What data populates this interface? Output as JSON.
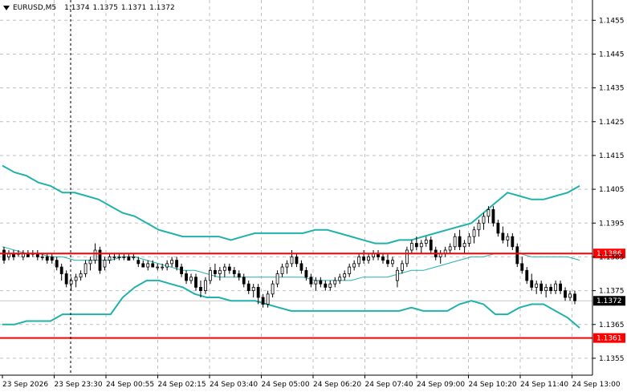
{
  "header": {
    "symbol": "EURUSD,M5",
    "ohlc": "1.1374 1.1375 1.1371 1.1372"
  },
  "price_axis": {
    "labels": [
      "1.1455",
      "1.1445",
      "1.1435",
      "1.1425",
      "1.1415",
      "1.1405",
      "1.1395",
      "1.1385",
      "1.1375",
      "1.1365",
      "1.1355"
    ],
    "current_price": "1.1372"
  },
  "time_axis": {
    "labels": [
      "23 Sep 2026",
      "23 Sep 23:30",
      "24 Sep 00:55",
      "24 Sep 02:15",
      "24 Sep 03:40",
      "24 Sep 05:00",
      "24 Sep 06:20",
      "24 Sep 07:40",
      "24 Sep 09:00",
      "24 Sep 10:20",
      "24 Sep 11:40",
      "24 Sep 13:00"
    ]
  },
  "horizontal_lines": [
    {
      "label": "1.1386",
      "price": 1.1386,
      "color": "#ff0000"
    },
    {
      "label": "1.1361",
      "price": 1.1361,
      "color": "#ff0000"
    }
  ],
  "colors": {
    "bands": "#20b2aa",
    "grid": "#c0c0c0",
    "candle": "#000000",
    "level_lines": "#ff0000"
  },
  "chart_data": {
    "type": "candlestick",
    "y_range": [
      1.135,
      1.1461
    ],
    "indicator": "bollinger-bands",
    "upper_band": [
      1.1412,
      1.141,
      1.1409,
      1.1407,
      1.1406,
      1.1404,
      1.1404,
      1.1403,
      1.1402,
      1.14,
      1.1398,
      1.1397,
      1.1395,
      1.1393,
      1.1392,
      1.1391,
      1.1391,
      1.1391,
      1.1391,
      1.139,
      1.1391,
      1.1392,
      1.1392,
      1.1392,
      1.1392,
      1.1392,
      1.1393,
      1.1393,
      1.1392,
      1.1391,
      1.139,
      1.1389,
      1.1389,
      1.139,
      1.139,
      1.1391,
      1.1392,
      1.1393,
      1.1394,
      1.1395,
      1.1398,
      1.1401,
      1.1404,
      1.1403,
      1.1402,
      1.1402,
      1.1403,
      1.1404,
      1.1406
    ],
    "middle_band": [
      1.1388,
      1.1387,
      1.1386,
      1.1386,
      1.1385,
      1.1385,
      1.1384,
      1.1384,
      1.1384,
      1.1384,
      1.1385,
      1.1385,
      1.1384,
      1.1383,
      1.1382,
      1.1381,
      1.1381,
      1.138,
      1.1379,
      1.1379,
      1.1379,
      1.1379,
      1.1379,
      1.1379,
      1.1379,
      1.1379,
      1.1378,
      1.1378,
      1.1378,
      1.1378,
      1.1379,
      1.1379,
      1.1379,
      1.138,
      1.1381,
      1.1381,
      1.1382,
      1.1383,
      1.1384,
      1.1385,
      1.1385,
      1.1386,
      1.1386,
      1.1386,
      1.1385,
      1.1385,
      1.1385,
      1.1385,
      1.1384
    ],
    "lower_band": [
      1.1365,
      1.1365,
      1.1366,
      1.1366,
      1.1366,
      1.1368,
      1.1368,
      1.1368,
      1.1368,
      1.1368,
      1.1373,
      1.1376,
      1.1378,
      1.1378,
      1.1377,
      1.1376,
      1.1374,
      1.1373,
      1.1373,
      1.1372,
      1.1372,
      1.1372,
      1.1371,
      1.137,
      1.1369,
      1.1369,
      1.1369,
      1.1369,
      1.1369,
      1.1369,
      1.1369,
      1.1369,
      1.1369,
      1.1369,
      1.137,
      1.1369,
      1.1369,
      1.1369,
      1.1371,
      1.1372,
      1.1371,
      1.1368,
      1.1368,
      1.137,
      1.1371,
      1.1371,
      1.1369,
      1.1367,
      1.1364
    ],
    "candles": [
      [
        1.1387,
        1.1388,
        1.1383,
        1.1384
      ],
      [
        1.1385,
        1.1387,
        1.1384,
        1.1386
      ],
      [
        1.1386,
        1.1387,
        1.1384,
        1.1385
      ],
      [
        1.1386,
        1.1387,
        1.1385,
        1.1386
      ],
      [
        1.1385,
        1.1387,
        1.1384,
        1.1386
      ],
      [
        1.1386,
        1.1387,
        1.1385,
        1.1385
      ],
      [
        1.1386,
        1.1387,
        1.1385,
        1.1386
      ],
      [
        1.1386,
        1.1387,
        1.1384,
        1.1385
      ],
      [
        1.1385,
        1.1386,
        1.1384,
        1.1385
      ],
      [
        1.1385,
        1.1386,
        1.1383,
        1.1384
      ],
      [
        1.1385,
        1.1386,
        1.1383,
        1.1384
      ],
      [
        1.1384,
        1.1385,
        1.1381,
        1.1382
      ],
      [
        1.1382,
        1.1383,
        1.1378,
        1.138
      ],
      [
        1.138,
        1.1381,
        1.1376,
        1.1377
      ],
      [
        1.1377,
        1.1379,
        1.1375,
        1.1378
      ],
      [
        1.1378,
        1.138,
        1.1376,
        1.1379
      ],
      [
        1.1379,
        1.1381,
        1.1378,
        1.138
      ],
      [
        1.138,
        1.1384,
        1.1379,
        1.1383
      ],
      [
        1.1383,
        1.1385,
        1.1381,
        1.1384
      ],
      [
        1.1384,
        1.1389,
        1.1383,
        1.1387
      ],
      [
        1.1387,
        1.1388,
        1.138,
        1.1381
      ],
      [
        1.1382,
        1.1385,
        1.1381,
        1.1384
      ],
      [
        1.1384,
        1.1386,
        1.1383,
        1.1385
      ],
      [
        1.1385,
        1.1386,
        1.1384,
        1.1385
      ],
      [
        1.1385,
        1.1386,
        1.1384,
        1.1385
      ],
      [
        1.1385,
        1.1386,
        1.1384,
        1.1385
      ],
      [
        1.1385,
        1.1386,
        1.1384,
        1.1384
      ],
      [
        1.1385,
        1.1386,
        1.1384,
        1.1385
      ],
      [
        1.1384,
        1.1385,
        1.1382,
        1.1383
      ],
      [
        1.1383,
        1.1384,
        1.1382,
        1.1382
      ],
      [
        1.1382,
        1.1384,
        1.1381,
        1.1383
      ],
      [
        1.1383,
        1.1384,
        1.1382,
        1.1382
      ],
      [
        1.1382,
        1.1383,
        1.1381,
        1.1382
      ],
      [
        1.1382,
        1.1383,
        1.1381,
        1.1382
      ],
      [
        1.1382,
        1.1384,
        1.1381,
        1.1383
      ],
      [
        1.1383,
        1.1385,
        1.1382,
        1.1384
      ],
      [
        1.1384,
        1.1385,
        1.1381,
        1.1382
      ],
      [
        1.1382,
        1.1383,
        1.1379,
        1.138
      ],
      [
        1.138,
        1.1381,
        1.1377,
        1.1378
      ],
      [
        1.1378,
        1.138,
        1.1377,
        1.1379
      ],
      [
        1.1379,
        1.138,
        1.1375,
        1.1376
      ],
      [
        1.1376,
        1.1378,
        1.1373,
        1.1375
      ],
      [
        1.1375,
        1.1379,
        1.1374,
        1.1378
      ],
      [
        1.1378,
        1.1382,
        1.1377,
        1.1381
      ],
      [
        1.1381,
        1.1383,
        1.1379,
        1.138
      ],
      [
        1.138,
        1.1382,
        1.1378,
        1.1381
      ],
      [
        1.1381,
        1.1383,
        1.1379,
        1.1382
      ],
      [
        1.1382,
        1.1383,
        1.138,
        1.1381
      ],
      [
        1.1381,
        1.1382,
        1.1379,
        1.138
      ],
      [
        1.138,
        1.1381,
        1.1378,
        1.1379
      ],
      [
        1.1379,
        1.138,
        1.1376,
        1.1377
      ],
      [
        1.1377,
        1.1378,
        1.1374,
        1.1375
      ],
      [
        1.1375,
        1.1377,
        1.1373,
        1.1376
      ],
      [
        1.1376,
        1.1377,
        1.1371,
        1.1373
      ],
      [
        1.1373,
        1.1374,
        1.137,
        1.1371
      ],
      [
        1.1371,
        1.1375,
        1.137,
        1.1374
      ],
      [
        1.1374,
        1.1378,
        1.1373,
        1.1377
      ],
      [
        1.1377,
        1.1381,
        1.1376,
        1.138
      ],
      [
        1.138,
        1.1383,
        1.1379,
        1.1382
      ],
      [
        1.1382,
        1.1384,
        1.138,
        1.1383
      ],
      [
        1.1383,
        1.1387,
        1.1382,
        1.1385
      ],
      [
        1.1385,
        1.1386,
        1.1382,
        1.1383
      ],
      [
        1.1383,
        1.1384,
        1.138,
        1.1381
      ],
      [
        1.1381,
        1.1382,
        1.1378,
        1.1379
      ],
      [
        1.1379,
        1.138,
        1.1376,
        1.1377
      ],
      [
        1.1377,
        1.1379,
        1.1375,
        1.1378
      ],
      [
        1.1378,
        1.1379,
        1.1376,
        1.1377
      ],
      [
        1.1377,
        1.1378,
        1.1375,
        1.1376
      ],
      [
        1.1376,
        1.1378,
        1.1375,
        1.1377
      ],
      [
        1.1377,
        1.1379,
        1.1376,
        1.1378
      ],
      [
        1.1378,
        1.138,
        1.1377,
        1.1379
      ],
      [
        1.1379,
        1.1381,
        1.1378,
        1.138
      ],
      [
        1.138,
        1.1383,
        1.1379,
        1.1382
      ],
      [
        1.1382,
        1.1384,
        1.1381,
        1.1383
      ],
      [
        1.1383,
        1.1386,
        1.1382,
        1.1385
      ],
      [
        1.1385,
        1.1387,
        1.1383,
        1.1384
      ],
      [
        1.1384,
        1.1386,
        1.1383,
        1.1385
      ],
      [
        1.1385,
        1.1387,
        1.1384,
        1.1386
      ],
      [
        1.1386,
        1.1387,
        1.1384,
        1.1385
      ],
      [
        1.1385,
        1.1386,
        1.1383,
        1.1384
      ],
      [
        1.1384,
        1.1386,
        1.1382,
        1.1383
      ],
      [
        1.1383,
        1.1385,
        1.1382,
        1.1384
      ],
      [
        1.1378,
        1.1382,
        1.1376,
        1.1381
      ],
      [
        1.1381,
        1.1384,
        1.138,
        1.1383
      ],
      [
        1.1383,
        1.1388,
        1.1382,
        1.1387
      ],
      [
        1.1387,
        1.139,
        1.1386,
        1.1389
      ],
      [
        1.1389,
        1.1391,
        1.1387,
        1.1388
      ],
      [
        1.1388,
        1.139,
        1.1386,
        1.1389
      ],
      [
        1.1389,
        1.1391,
        1.1388,
        1.139
      ],
      [
        1.139,
        1.1391,
        1.1386,
        1.1387
      ],
      [
        1.1387,
        1.1388,
        1.1384,
        1.1385
      ],
      [
        1.1385,
        1.1387,
        1.1383,
        1.1386
      ],
      [
        1.1386,
        1.1388,
        1.1385,
        1.1387
      ],
      [
        1.1387,
        1.1389,
        1.1386,
        1.1388
      ],
      [
        1.1388,
        1.1392,
        1.1387,
        1.1391
      ],
      [
        1.1391,
        1.1393,
        1.1387,
        1.1388
      ],
      [
        1.1388,
        1.139,
        1.1386,
        1.1389
      ],
      [
        1.1389,
        1.1392,
        1.1388,
        1.1391
      ],
      [
        1.1391,
        1.1394,
        1.1389,
        1.1393
      ],
      [
        1.1393,
        1.1396,
        1.1391,
        1.1395
      ],
      [
        1.1395,
        1.1398,
        1.1393,
        1.1397
      ],
      [
        1.1397,
        1.14,
        1.1395,
        1.1399
      ],
      [
        1.1399,
        1.14,
        1.1394,
        1.1395
      ],
      [
        1.1395,
        1.1396,
        1.1391,
        1.1392
      ],
      [
        1.1392,
        1.1394,
        1.1389,
        1.139
      ],
      [
        1.139,
        1.1392,
        1.1388,
        1.1391
      ],
      [
        1.1391,
        1.1392,
        1.1387,
        1.1388
      ],
      [
        1.1388,
        1.1389,
        1.1382,
        1.1383
      ],
      [
        1.1383,
        1.1385,
        1.138,
        1.1381
      ],
      [
        1.1381,
        1.1382,
        1.1377,
        1.1378
      ],
      [
        1.1378,
        1.138,
        1.1375,
        1.1376
      ],
      [
        1.1376,
        1.1378,
        1.1374,
        1.1377
      ],
      [
        1.1377,
        1.1378,
        1.1374,
        1.1375
      ],
      [
        1.1375,
        1.1377,
        1.1373,
        1.1376
      ],
      [
        1.1376,
        1.1377,
        1.1374,
        1.1375
      ],
      [
        1.1375,
        1.1378,
        1.1374,
        1.1377
      ],
      [
        1.1377,
        1.1378,
        1.1374,
        1.1375
      ],
      [
        1.1375,
        1.1376,
        1.1372,
        1.1373
      ],
      [
        1.1373,
        1.1375,
        1.1372,
        1.1374
      ],
      [
        1.1374,
        1.1375,
        1.1371,
        1.1372
      ]
    ]
  }
}
